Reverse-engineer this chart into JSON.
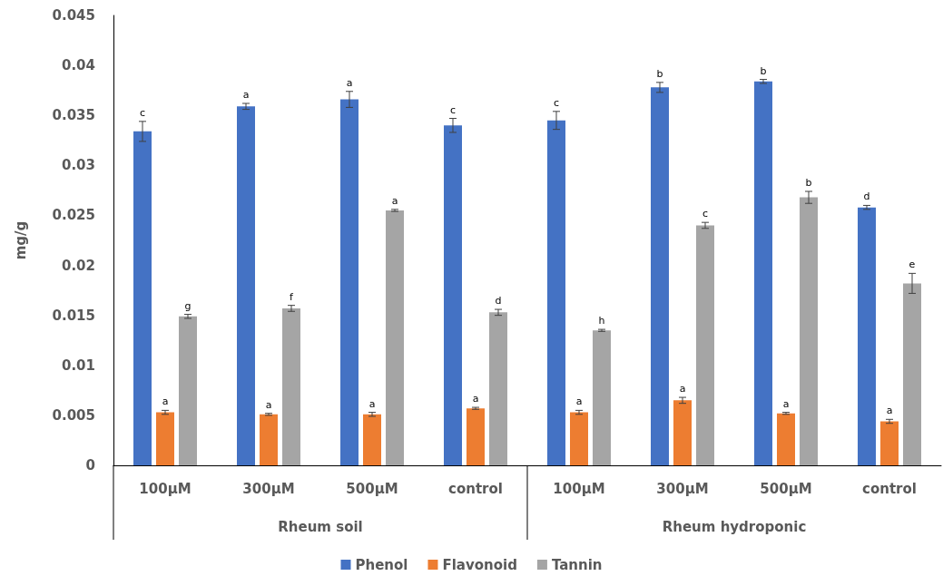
{
  "chart_data": {
    "type": "bar",
    "ylabel": "mg/g",
    "categories": [
      "100µM",
      "300µM",
      "500µM",
      "control",
      "100µM",
      "300µM",
      "500µM",
      "control"
    ],
    "annotations": [
      "Rheum soil",
      "Rheum hydroponic"
    ],
    "series": [
      {
        "name": "Phenol",
        "color": "#4472c4",
        "values": [
          0.0334,
          0.0359,
          0.0366,
          0.034,
          0.0345,
          0.0378,
          0.0384,
          0.0258
        ],
        "errors": [
          0.001,
          0.0003,
          0.0008,
          0.0007,
          0.0009,
          0.0005,
          0.0002,
          0.0002
        ],
        "value_labels": [
          "c",
          "a",
          "a",
          "c",
          "c",
          "b",
          "b",
          "d"
        ]
      },
      {
        "name": "Flavonoid",
        "color": "#ed7d31",
        "values": [
          0.0053,
          0.0051,
          0.0051,
          0.0057,
          0.0053,
          0.0065,
          0.0052,
          0.0044
        ],
        "errors": [
          0.0002,
          0.0001,
          0.0002,
          0.0001,
          0.0002,
          0.0003,
          0.0001,
          0.0002
        ],
        "value_labels": [
          "a",
          "a",
          "a",
          "a",
          "a",
          "a",
          "a",
          "a"
        ]
      },
      {
        "name": "Tannin",
        "color": "#a5a5a5",
        "values": [
          0.0149,
          0.0157,
          0.0255,
          0.0153,
          0.0135,
          0.024,
          0.0268,
          0.0182
        ],
        "errors": [
          0.0002,
          0.0003,
          0.0001,
          0.0003,
          0.0001,
          0.0003,
          0.0006,
          0.001
        ],
        "value_labels": [
          "g",
          "f",
          "a",
          "d",
          "h",
          "c",
          "b",
          "e"
        ]
      }
    ],
    "ylim": [
      0,
      0.045
    ],
    "yticks": [
      0,
      0.005,
      0.01,
      0.015,
      0.02,
      0.025,
      0.03,
      0.035,
      0.04,
      0.045
    ],
    "grid": false,
    "legend": "bottom"
  }
}
